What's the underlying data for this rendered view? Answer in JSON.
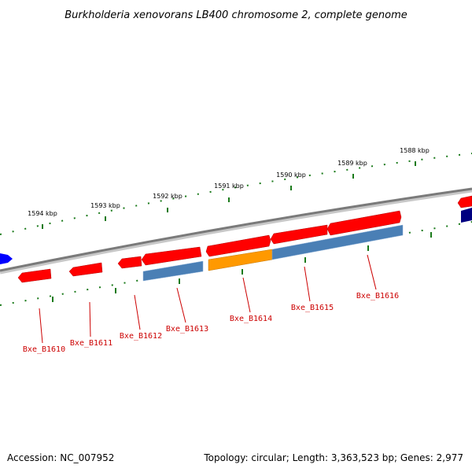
{
  "title": "Burkholderia xenovorans LB400 chromosome 2, complete genome",
  "footer": {
    "accession": "Accession: NC_007952",
    "summary": "Topology: circular; Length: 3,363,523 bp; Genes: 2,977"
  },
  "scale_labels": [
    "1594 kbp",
    "1593 kbp",
    "1592 kbp",
    "1591 kbp",
    "1590 kbp",
    "1589 kbp",
    "1588 kbp"
  ],
  "gene_labels": [
    "Bxe_B1610",
    "Bxe_B1611",
    "Bxe_B1612",
    "Bxe_B1613",
    "Bxe_B1614",
    "Bxe_B1615",
    "Bxe_B1616"
  ],
  "colors": {
    "backbone": "#7a7a7a",
    "gene_red": "#ff0000",
    "gene_steelblue": "#4a7fb5",
    "gene_orange": "#ff9900",
    "gene_blue": "#0000ff",
    "gene_navy": "#000080",
    "scale_green": "#1a7a1a",
    "label_red": "#cc0000"
  }
}
